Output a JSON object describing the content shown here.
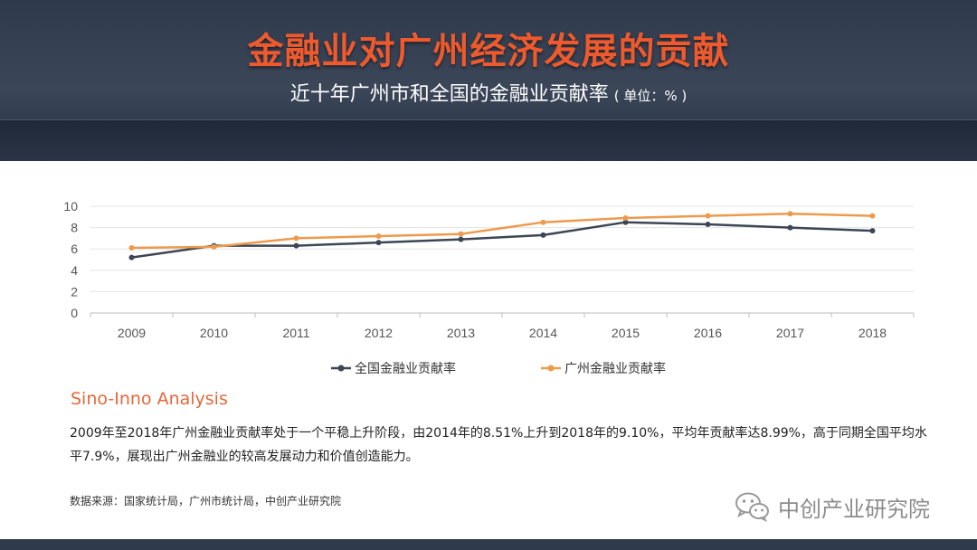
{
  "header": {
    "title": "金融业对广州经济发展的贡献",
    "subtitle": "近十年广州市和全国的金融业贡献率",
    "unit": "( 单位：% )"
  },
  "chart_data": {
    "type": "line",
    "categories": [
      "2009",
      "2010",
      "2011",
      "2012",
      "2013",
      "2014",
      "2015",
      "2016",
      "2017",
      "2018"
    ],
    "series": [
      {
        "name": "全国金融业贡献率",
        "color": "#3c4654",
        "values": [
          5.2,
          6.3,
          6.3,
          6.6,
          6.9,
          7.3,
          8.5,
          8.3,
          8.0,
          7.7
        ]
      },
      {
        "name": "广州金融业贡献率",
        "color": "#ed9a4d",
        "values": [
          6.1,
          6.2,
          7.0,
          7.2,
          7.4,
          8.5,
          8.9,
          9.1,
          9.3,
          9.1
        ]
      }
    ],
    "ylim": [
      0,
      10
    ],
    "yticks": [
      "0",
      "2",
      "4",
      "6",
      "8",
      "10"
    ],
    "grid": true,
    "legend_position": "bottom"
  },
  "analysis": {
    "title": "Sino-Inno Analysis",
    "text": "2009年至2018年广州金融业贡献率处于一个平稳上升阶段，由2014年的8.51%上升到2018年的9.10%，平均年贡献率达8.99%，高于同期全国平均水平7.9%，展现出广州金融业的较高发展动力和价值创造能力。"
  },
  "source": "数据来源：国家统计局，广州市统计局，中创产业研究院",
  "watermark": {
    "text": "中创产业研究院",
    "icon": "wechat-icon"
  }
}
